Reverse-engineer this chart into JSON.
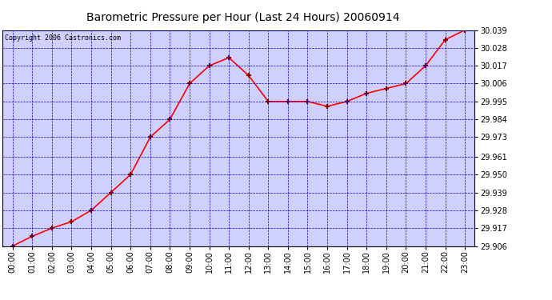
{
  "title": "Barometric Pressure per Hour (Last 24 Hours) 20060914",
  "copyright": "Copyright 2006 Castronics.com",
  "hours": [
    0,
    1,
    2,
    3,
    4,
    5,
    6,
    7,
    8,
    9,
    10,
    11,
    12,
    13,
    14,
    15,
    16,
    17,
    18,
    19,
    20,
    21,
    22,
    23
  ],
  "x_labels": [
    "00:00",
    "01:00",
    "02:00",
    "03:00",
    "04:00",
    "05:00",
    "06:00",
    "07:00",
    "08:00",
    "09:00",
    "10:00",
    "11:00",
    "12:00",
    "13:00",
    "14:00",
    "15:00",
    "16:00",
    "17:00",
    "18:00",
    "19:00",
    "20:00",
    "21:00",
    "22:00",
    "23:00"
  ],
  "pressure": [
    29.906,
    29.912,
    29.917,
    29.921,
    29.928,
    29.939,
    29.95,
    29.973,
    29.984,
    30.006,
    30.017,
    30.022,
    30.011,
    29.995,
    29.995,
    29.995,
    29.992,
    29.995,
    30.0,
    30.003,
    30.006,
    30.017,
    30.033,
    30.039
  ],
  "ylim_min": 29.906,
  "ylim_max": 30.039,
  "yticks": [
    29.906,
    29.917,
    29.928,
    29.939,
    29.95,
    29.961,
    29.973,
    29.984,
    29.995,
    30.006,
    30.017,
    30.028,
    30.039
  ],
  "line_color": "red",
  "marker_color": "darkred",
  "bg_color": "#d0d0ff",
  "fig_bg_color": "#ffffff",
  "grid_color": "#0000cc",
  "title_color": "black",
  "copyright_color": "black",
  "title_fontsize": 10,
  "copyright_fontsize": 6,
  "tick_fontsize": 7,
  "border_color": "black"
}
